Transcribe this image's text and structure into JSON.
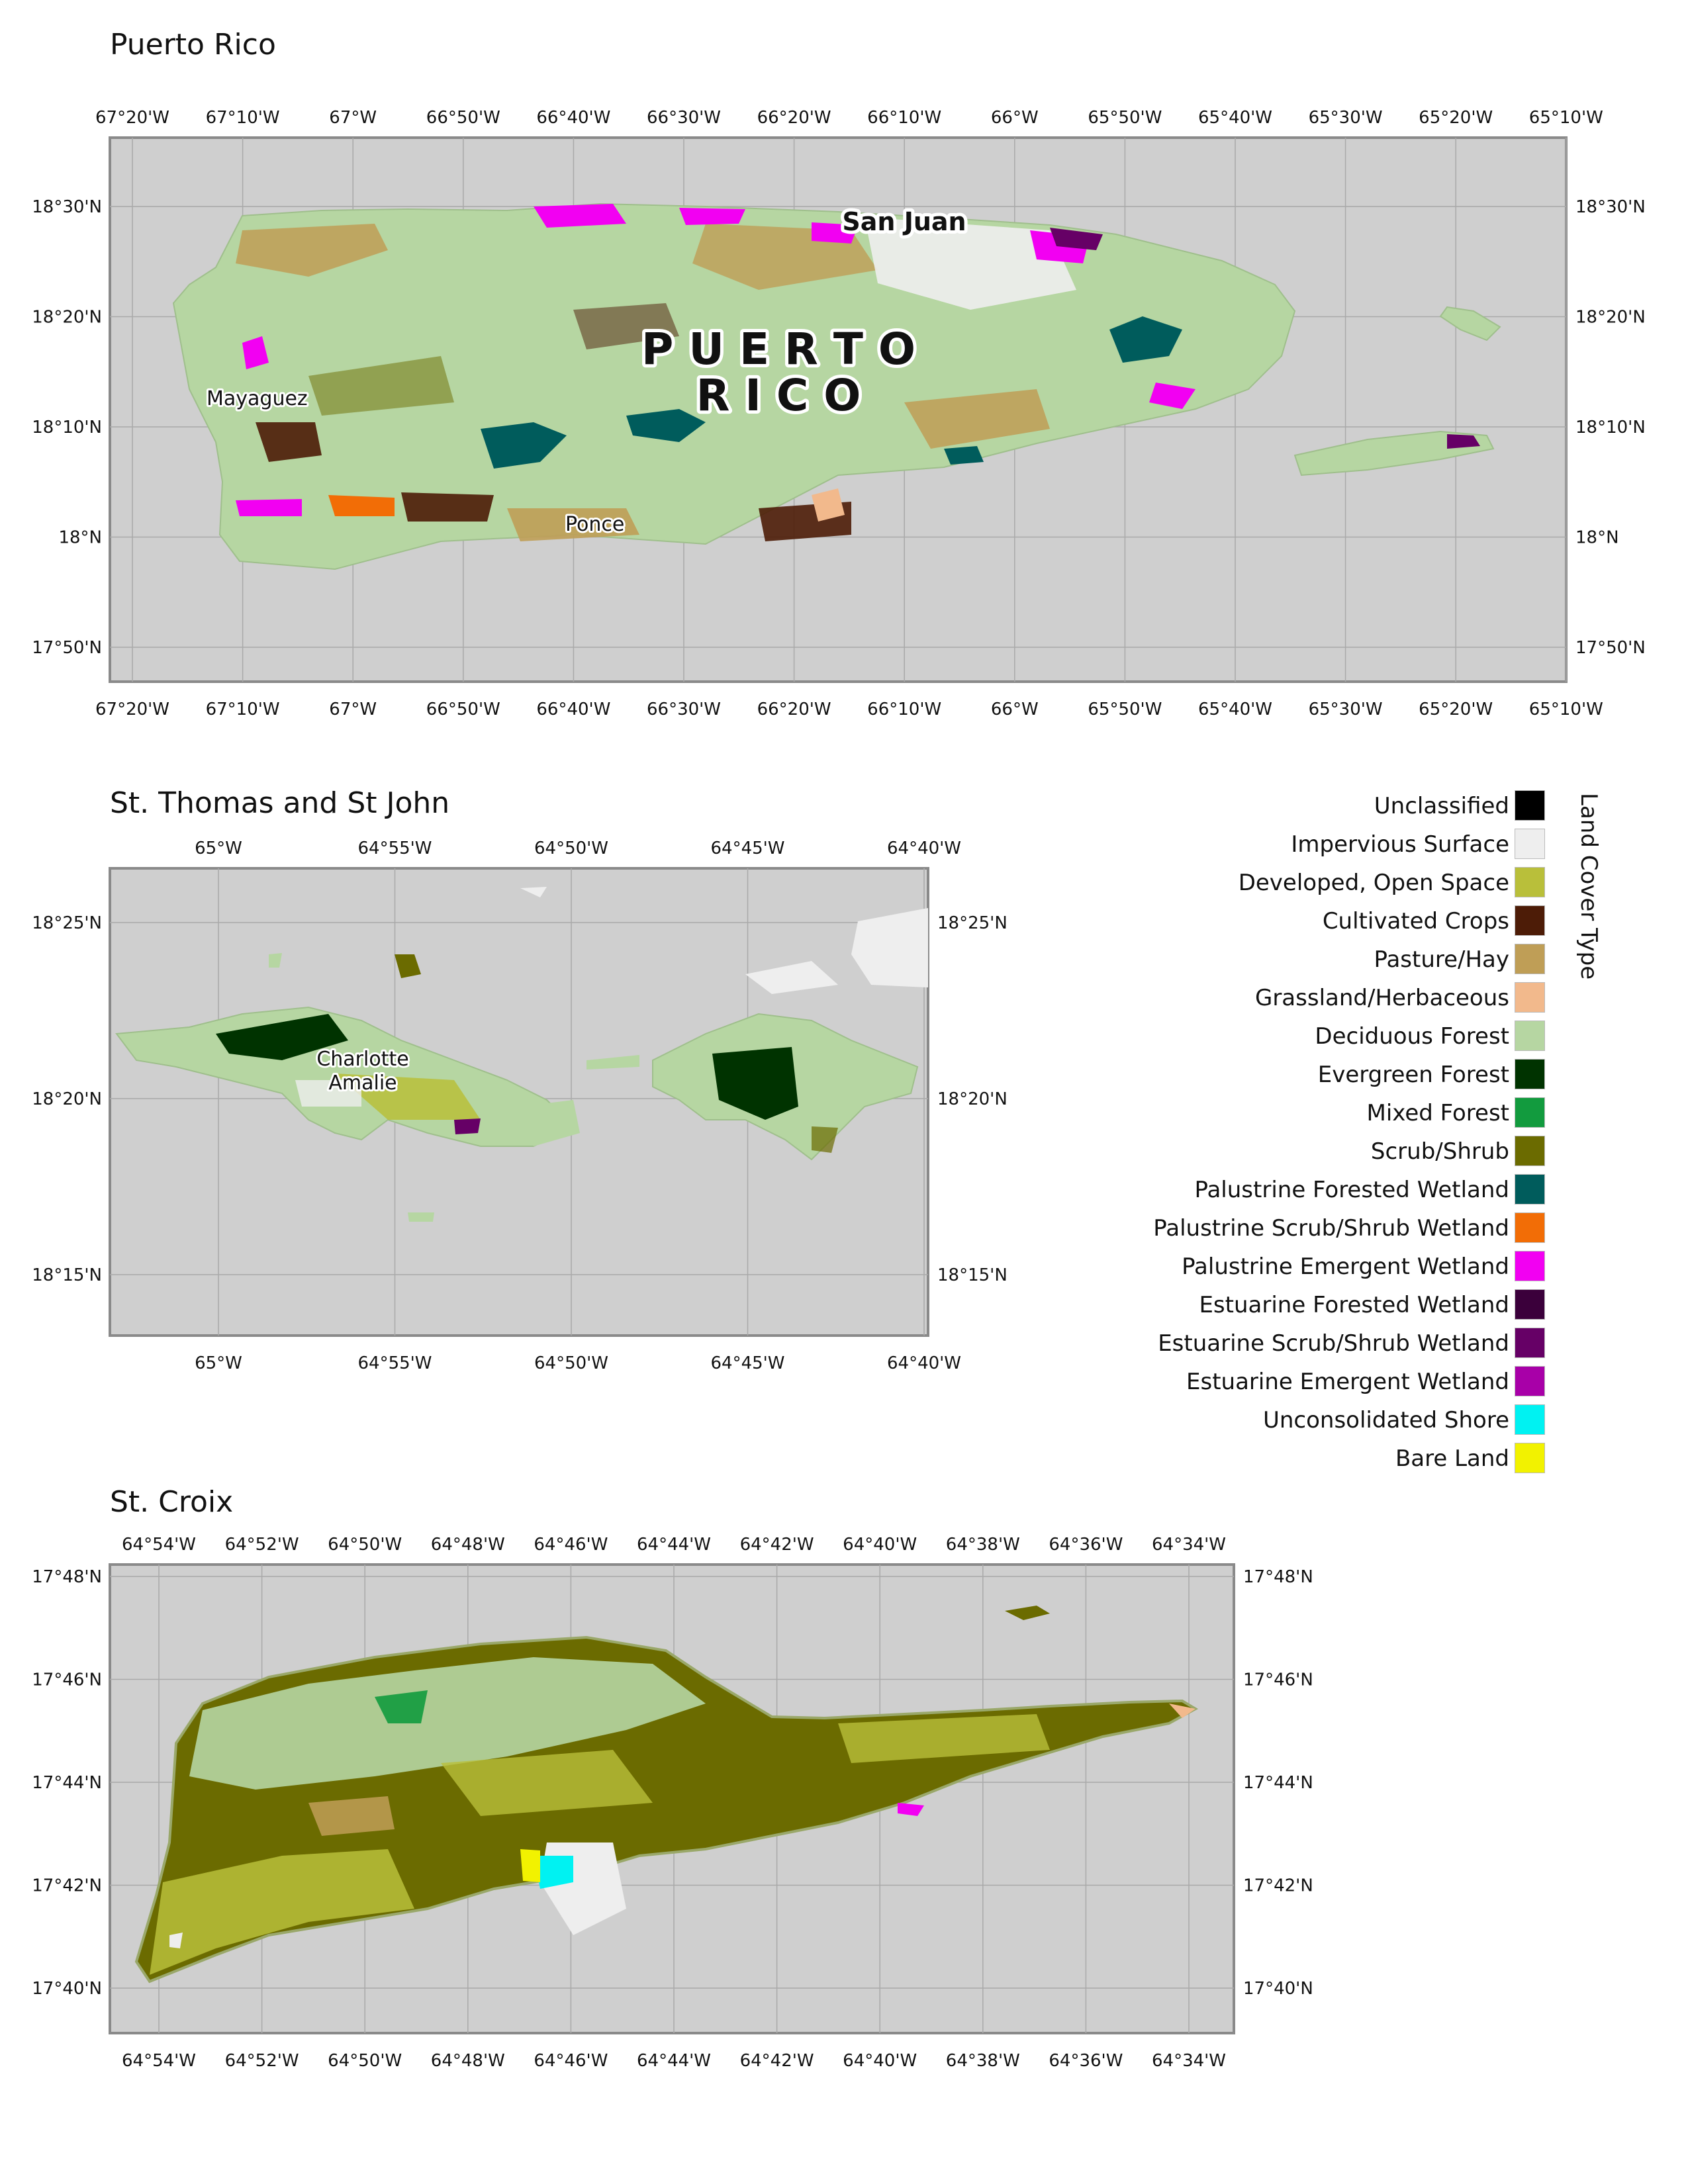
{
  "maps": [
    {
      "id": "pr",
      "title": "Puerto Rico",
      "top_lon_labels": [
        "67°20'W",
        "67°10'W",
        "67°W",
        "66°50'W",
        "66°40'W",
        "66°30'W",
        "66°20'W",
        "66°10'W",
        "66°W",
        "65°50'W",
        "65°40'W",
        "65°30'W",
        "65°20'W",
        "65°10'W"
      ],
      "bottom_lon_labels": [
        "67°20'W",
        "67°10'W",
        "67°W",
        "66°50'W",
        "66°40'W",
        "66°30'W",
        "66°20'W",
        "66°10'W",
        "66°W",
        "65°50'W",
        "65°40'W",
        "65°30'W",
        "65°20'W",
        "65°10'W"
      ],
      "lat_labels": [
        "18°30'N",
        "18°20'N",
        "18°10'N",
        "18°N",
        "17°50'N"
      ],
      "place_labels": {
        "region_line1": "P U E R T O",
        "region_line2": "R I C O",
        "san_juan": "San Juan",
        "mayaguez": "Mayaguez",
        "ponce": "Ponce"
      }
    },
    {
      "id": "st",
      "title": "St. Thomas and St John",
      "top_lon_labels": [
        "65°W",
        "64°55'W",
        "64°50'W",
        "64°45'W",
        "64°40'W"
      ],
      "bottom_lon_labels": [
        "65°W",
        "64°55'W",
        "64°50'W",
        "64°45'W",
        "64°40'W"
      ],
      "lat_labels": [
        "18°25'N",
        "18°20'N",
        "18°15'N"
      ],
      "place_labels": {
        "charlotte_line1": "Charlotte",
        "charlotte_line2": "Amalie"
      }
    },
    {
      "id": "sc",
      "title": "St. Croix",
      "top_lon_labels": [
        "64°54'W",
        "64°52'W",
        "64°50'W",
        "64°48'W",
        "64°46'W",
        "64°44'W",
        "64°42'W",
        "64°40'W",
        "64°38'W",
        "64°36'W",
        "64°34'W"
      ],
      "bottom_lon_labels": [
        "64°54'W",
        "64°52'W",
        "64°50'W",
        "64°48'W",
        "64°46'W",
        "64°44'W",
        "64°42'W",
        "64°40'W",
        "64°38'W",
        "64°36'W",
        "64°34'W"
      ],
      "lat_labels": [
        "17°48'N",
        "17°46'N",
        "17°44'N",
        "17°42'N",
        "17°40'N"
      ]
    }
  ],
  "legend": {
    "title": "Land Cover Type",
    "items": [
      {
        "label": "Unclassified",
        "color": "#000000"
      },
      {
        "label": "Impervious Surface",
        "color": "#eeeeee"
      },
      {
        "label": "Developed, Open Space",
        "color": "#b9bf3a"
      },
      {
        "label": "Cultivated Crops",
        "color": "#4d1c07"
      },
      {
        "label": "Pasture/Hay",
        "color": "#bf9e56"
      },
      {
        "label": "Grassland/Herbaceous",
        "color": "#f2b98c"
      },
      {
        "label": "Deciduous Forest",
        "color": "#b6d6a2"
      },
      {
        "label": "Evergreen Forest",
        "color": "#003300"
      },
      {
        "label": "Mixed Forest",
        "color": "#129b3e"
      },
      {
        "label": "Scrub/Shrub",
        "color": "#6b6b00"
      },
      {
        "label": "Palustrine Forested Wetland",
        "color": "#005c5c"
      },
      {
        "label": "Palustrine Scrub/Shrub Wetland",
        "color": "#f26d06"
      },
      {
        "label": "Palustrine Emergent Wetland",
        "color": "#f200f2"
      },
      {
        "label": "Estuarine Forested Wetland",
        "color": "#3b003b"
      },
      {
        "label": "Estuarine Scrub/Shrub Wetland",
        "color": "#660066"
      },
      {
        "label": "Estuarine Emergent Wetland",
        "color": "#a800a8"
      },
      {
        "label": "Unconsolidated Shore",
        "color": "#00f2f2"
      },
      {
        "label": "Bare Land",
        "color": "#f2f200"
      }
    ]
  }
}
